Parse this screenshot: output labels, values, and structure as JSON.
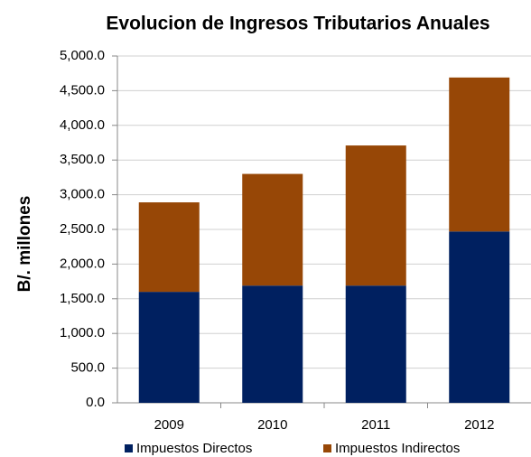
{
  "chart_data": {
    "type": "stacked_bar",
    "title": "Evolucion de Ingresos Tributarios Anuales",
    "y_label": "B/. millones",
    "categories": [
      "2009",
      "2010",
      "2011",
      "2012"
    ],
    "series": [
      {
        "name": "Impuestos Directos",
        "color": "#002060",
        "values": [
          1600,
          1690,
          1690,
          2470
        ]
      },
      {
        "name": "Impuestos Indirectos",
        "color": "#974706",
        "values": [
          1290,
          1610,
          2020,
          2220
        ]
      }
    ],
    "ylim": [
      0,
      5000
    ],
    "yticks": [
      {
        "value": 0,
        "label": "0.0"
      },
      {
        "value": 500,
        "label": "500.0"
      },
      {
        "value": 1000,
        "label": "1,000.0"
      },
      {
        "value": 1500,
        "label": "1,500.0"
      },
      {
        "value": 2000,
        "label": "2,000.0"
      },
      {
        "value": 2500,
        "label": "2,500.0"
      },
      {
        "value": 3000,
        "label": "3,000.0"
      },
      {
        "value": 3500,
        "label": "3,500.0"
      },
      {
        "value": 4000,
        "label": "4,000.0"
      },
      {
        "value": 4500,
        "label": "4,500.0"
      },
      {
        "value": 5000,
        "label": "5,000.0"
      }
    ],
    "grid": true,
    "legend": "bottom"
  }
}
